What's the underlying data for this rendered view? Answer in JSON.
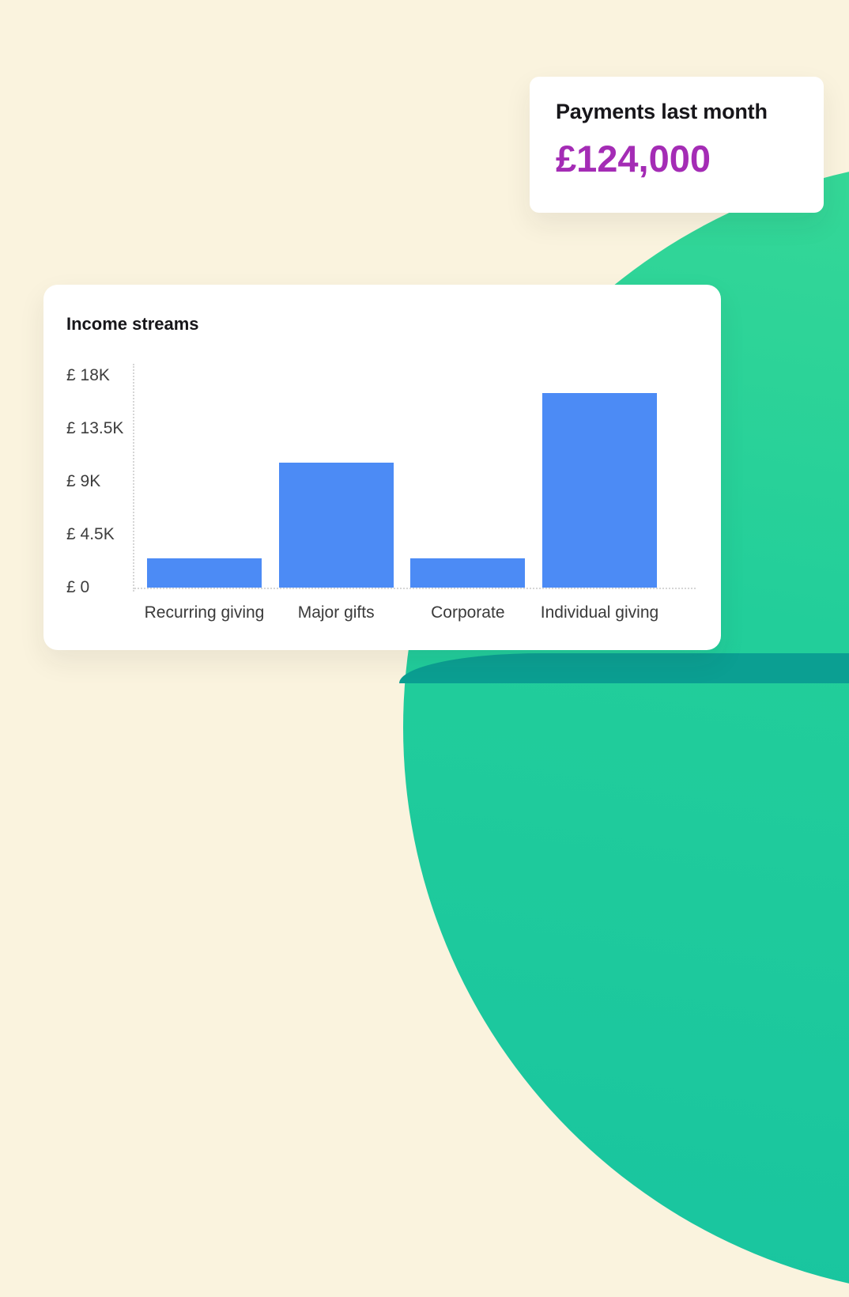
{
  "payments_card": {
    "title": "Payments last month",
    "amount": "£124,000"
  },
  "income_card": {
    "title": "Income streams"
  },
  "chart_data": {
    "type": "bar",
    "title": "Income streams",
    "categories": [
      "Recurring giving",
      "Major gifts",
      "Corporate",
      "Individual giving"
    ],
    "values": [
      2500,
      10600,
      2500,
      16500
    ],
    "ylim": [
      0,
      18000
    ],
    "ytick_labels": [
      "£ 18K",
      "£ 13.5K",
      "£ 9K",
      "£ 4.5K",
      "£ 0"
    ],
    "xlabel": "",
    "ylabel": "",
    "grid": false,
    "legend": "none",
    "bar_color": "#4C8BF5",
    "currency": "£"
  },
  "colors": {
    "background": "#FAF3DE",
    "accent_purple": "#A42CB5",
    "bar_blue": "#4C8BF5",
    "blob_green_start": "#3ADA96",
    "blob_green_end": "#18C4A0",
    "teal_band": "#0B9F92"
  }
}
